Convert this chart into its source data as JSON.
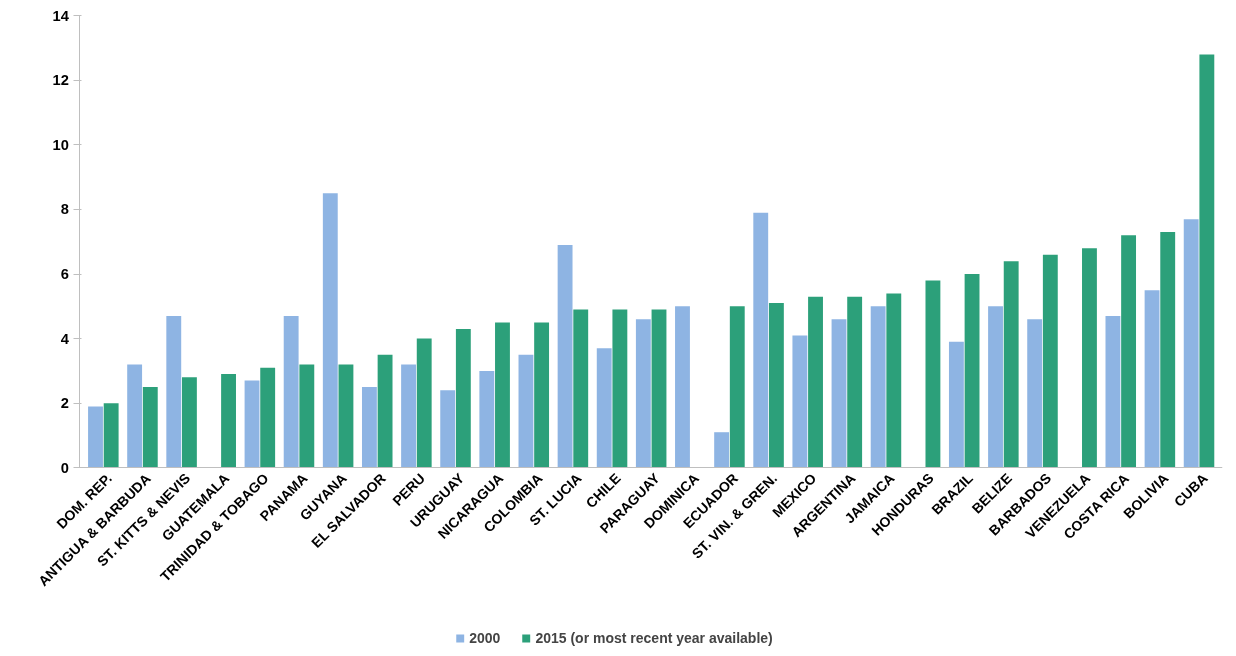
{
  "chart_data": {
    "type": "bar",
    "categories": [
      "DOM. REP.",
      "ANTIGUA & BARBUDA",
      "ST. KITTS & NEVIS",
      "GUATEMALA",
      "TRINIDAD & TOBAGO",
      "PANAMA",
      "GUYANA",
      "EL SALVADOR",
      "PERU",
      "URUGUAY",
      "NICARAGUA",
      "COLOMBIA",
      "ST. LUCIA",
      "CHILE",
      "PARAGUAY",
      "DOMINICA",
      "ECUADOR",
      "ST. VIN. & GREN.",
      "MEXICO",
      "ARGENTINA",
      "JAMAICA",
      "HONDURAS",
      "BRAZIL",
      "BELIZE",
      "BARBADOS",
      "VENEZUELA",
      "COSTA RICA",
      "BOLIVIA",
      "CUBA"
    ],
    "series": [
      {
        "name": "2000",
        "color": "#8eb4e3",
        "values": [
          1.9,
          3.2,
          4.7,
          null,
          2.7,
          4.7,
          8.5,
          2.5,
          3.2,
          2.4,
          3.0,
          3.5,
          6.9,
          3.7,
          4.6,
          5.0,
          1.1,
          7.9,
          4.1,
          4.6,
          5.0,
          null,
          3.9,
          5.0,
          4.6,
          null,
          4.7,
          5.5,
          7.7
        ]
      },
      {
        "name": "2015 (or most recent year available)",
        "color": "#2ca07a",
        "values": [
          2.0,
          2.5,
          2.8,
          2.9,
          3.1,
          3.2,
          3.2,
          3.5,
          4.0,
          4.3,
          4.5,
          4.5,
          4.9,
          4.9,
          4.9,
          null,
          5.0,
          5.1,
          5.3,
          5.3,
          5.4,
          5.8,
          6.0,
          6.4,
          6.6,
          6.8,
          7.2,
          7.3,
          12.8
        ]
      }
    ],
    "ylim": [
      0,
      14
    ],
    "yticks": [
      0,
      2,
      4,
      6,
      8,
      10,
      12,
      14
    ],
    "grid": false,
    "legend": "bottom"
  }
}
